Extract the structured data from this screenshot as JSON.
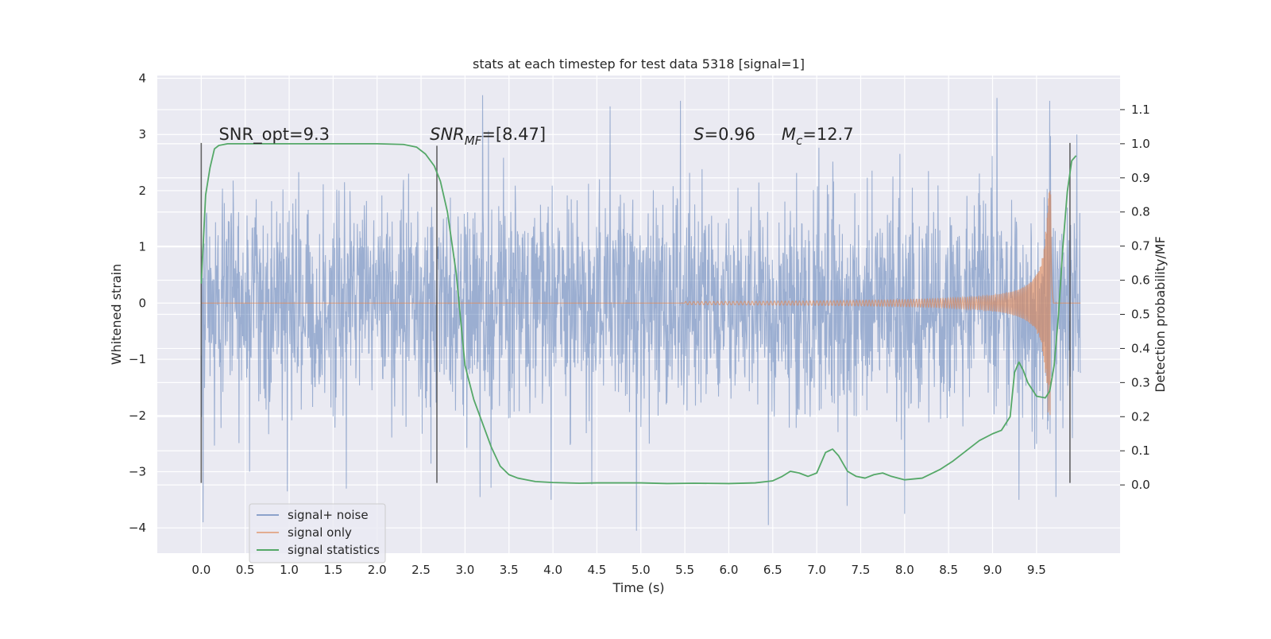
{
  "chart_data": {
    "type": "line",
    "title": "stats at each timestep for test data 5318 [signal=1]",
    "xlabel": "Time (s)",
    "ylabel": "Whitened strain",
    "ylabel_right": "Detection probability/MF",
    "xlim": [
      -0.5,
      10.45
    ],
    "ylim": [
      -4.45,
      4.05
    ],
    "ylim_right": [
      -0.2,
      1.2
    ],
    "x_ticks": [
      "0.0",
      "0.5",
      "1.0",
      "1.5",
      "2.0",
      "2.5",
      "3.0",
      "3.5",
      "4.0",
      "4.5",
      "5.0",
      "5.5",
      "6.0",
      "6.5",
      "7.0",
      "7.5",
      "8.0",
      "8.5",
      "9.0",
      "9.5"
    ],
    "y_ticks": [
      "4",
      "3",
      "2",
      "1",
      "0",
      "−1",
      "−2",
      "−3",
      "−4"
    ],
    "y_ticks_right": [
      "1.1",
      "1.0",
      "0.9",
      "0.8",
      "0.7",
      "0.6",
      "0.5",
      "0.4",
      "0.3",
      "0.2",
      "0.1",
      "0.0"
    ],
    "grid": true,
    "legend_position": "lower-left",
    "annotations": [
      {
        "text": "SNR_opt=9.3",
        "x": 0.2,
        "y": 3.0,
        "italic": false
      },
      {
        "prefix": "SNR",
        "sub": "MF",
        "suffix": "=[8.47]",
        "x": 2.6,
        "y": 3.0,
        "italic": true
      },
      {
        "prefix": "S",
        "sub": "",
        "suffix": "=0.96",
        "x": 5.6,
        "y": 3.0,
        "italic": true
      },
      {
        "prefix": "M",
        "sub": "c",
        "suffix": "=12.7",
        "x": 6.6,
        "y": 3.0,
        "italic": true
      }
    ],
    "vertical_markers": [
      {
        "x": 0.0,
        "y_top": 2.85,
        "y_bottom": -3.2
      },
      {
        "x": 2.68,
        "y_top": 2.8,
        "y_bottom": -3.2
      },
      {
        "x": 9.88,
        "y_top": 2.85,
        "y_bottom": -3.2
      }
    ],
    "series": [
      {
        "name": "signal+ noise",
        "axis": "left",
        "color": "#4c72b0",
        "generated": true,
        "x_range": [
          0.0,
          10.0
        ],
        "sigma": 1.0,
        "note_peaks": [
          {
            "x": 0.02,
            "y": -3.9
          },
          {
            "x": 0.55,
            "y": -3.0
          },
          {
            "x": 0.98,
            "y": -3.35
          },
          {
            "x": 1.65,
            "y": -3.3
          },
          {
            "x": 3.2,
            "y": 3.7
          },
          {
            "x": 3.98,
            "y": -3.5
          },
          {
            "x": 4.65,
            "y": 3.5
          },
          {
            "x": 4.95,
            "y": -4.05
          },
          {
            "x": 5.45,
            "y": 3.6
          },
          {
            "x": 6.45,
            "y": -3.95
          },
          {
            "x": 8.0,
            "y": -3.75
          },
          {
            "x": 9.05,
            "y": 3.65
          },
          {
            "x": 9.3,
            "y": -3.5
          },
          {
            "x": 9.65,
            "y": 3.6
          },
          {
            "x": 9.72,
            "y": -3.45
          }
        ]
      },
      {
        "name": "signal only",
        "axis": "left",
        "color": "#dd8452",
        "generated": true,
        "chirp_start": 5.5,
        "merger_time": 9.66,
        "peak_amplitude": 2.0
      },
      {
        "name": "signal statistics",
        "axis": "right",
        "color": "#55a868",
        "x": [
          0.0,
          0.05,
          0.1,
          0.15,
          0.2,
          0.3,
          0.5,
          1.0,
          1.5,
          2.0,
          2.3,
          2.45,
          2.55,
          2.65,
          2.72,
          2.8,
          2.9,
          3.0,
          3.1,
          3.2,
          3.3,
          3.4,
          3.5,
          3.6,
          3.7,
          3.8,
          4.0,
          4.3,
          4.5,
          5.0,
          5.3,
          5.6,
          6.0,
          6.3,
          6.5,
          6.6,
          6.7,
          6.8,
          6.9,
          7.0,
          7.1,
          7.18,
          7.25,
          7.35,
          7.45,
          7.55,
          7.65,
          7.75,
          7.85,
          8.0,
          8.2,
          8.4,
          8.55,
          8.7,
          8.85,
          9.0,
          9.1,
          9.2,
          9.25,
          9.3,
          9.35,
          9.4,
          9.5,
          9.6,
          9.65,
          9.7,
          9.75,
          9.8,
          9.85,
          9.9,
          9.95
        ],
        "values": [
          0.59,
          0.85,
          0.93,
          0.985,
          0.995,
          1.0,
          1.0,
          1.0,
          1.0,
          1.0,
          0.998,
          0.99,
          0.97,
          0.935,
          0.89,
          0.8,
          0.62,
          0.35,
          0.25,
          0.18,
          0.11,
          0.055,
          0.03,
          0.02,
          0.015,
          0.01,
          0.007,
          0.005,
          0.006,
          0.006,
          0.004,
          0.005,
          0.004,
          0.006,
          0.012,
          0.024,
          0.04,
          0.035,
          0.025,
          0.035,
          0.095,
          0.105,
          0.085,
          0.04,
          0.025,
          0.02,
          0.03,
          0.035,
          0.025,
          0.015,
          0.02,
          0.045,
          0.07,
          0.1,
          0.13,
          0.15,
          0.16,
          0.2,
          0.33,
          0.36,
          0.335,
          0.3,
          0.26,
          0.255,
          0.275,
          0.35,
          0.5,
          0.7,
          0.86,
          0.95,
          0.965
        ]
      }
    ]
  }
}
